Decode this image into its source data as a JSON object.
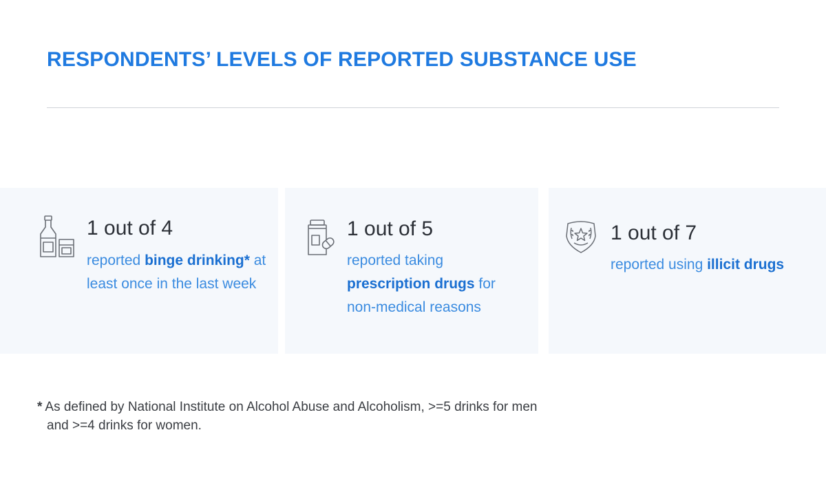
{
  "title": "RESPONDENTS’ LEVELS OF REPORTED SUBSTANCE USE",
  "cards": [
    {
      "icon": "alcohol-bottle-glass-icon",
      "stat": "1 out of 4",
      "desc_pre": "reported ",
      "desc_em": "binge drinking*",
      "desc_post": " at least once in the last week"
    },
    {
      "icon": "pill-bottle-icon",
      "stat": "1 out of 5",
      "desc_pre": "reported taking ",
      "desc_em": "prescription drugs",
      "desc_post": " for non-medical reasons"
    },
    {
      "icon": "drug-badge-icon",
      "stat": "1 out of 7",
      "desc_pre": "reported using ",
      "desc_em": "illicit drugs",
      "desc_post": ""
    }
  ],
  "footnote": {
    "marker": "*",
    "line1": "As defined by National Institute on Alcohol Abuse and Alcoholism, >=5 drinks for men",
    "line2": "and >=4 drinks for women."
  },
  "colors": {
    "title": "#1f7ae0",
    "card_bg": "#f5f8fc",
    "desc": "#3a8be0",
    "emphasis": "#1a6fd1",
    "stat": "#2b2f36"
  }
}
